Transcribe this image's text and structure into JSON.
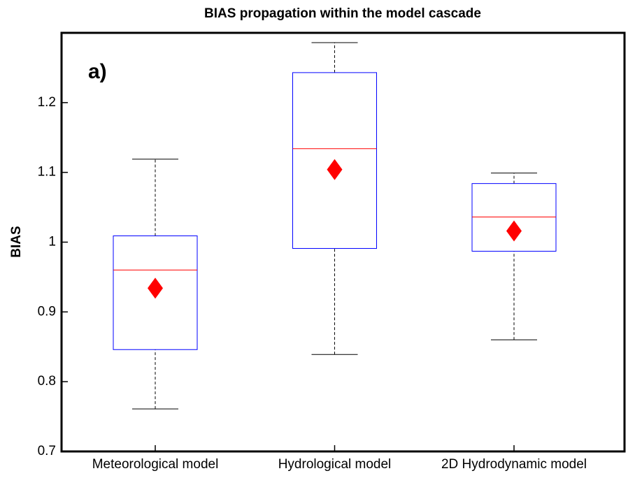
{
  "chart_data": {
    "type": "box",
    "title": "BIAS propagation within the model cascade",
    "ylabel": "BIAS",
    "panel_label": "a)",
    "categories": [
      "Meteorological model",
      "Hydrological model",
      "2D Hydrodynamic model"
    ],
    "whisker_low": [
      0.761,
      0.839,
      0.86
    ],
    "q1": [
      0.846,
      0.991,
      0.987
    ],
    "median": [
      0.96,
      1.134,
      1.036
    ],
    "q3": [
      1.009,
      1.243,
      1.084
    ],
    "whisker_high": [
      1.119,
      1.286,
      1.099
    ],
    "mean": [
      0.934,
      1.104,
      1.016
    ],
    "box_color": "#0000ff",
    "median_color": "#ff0000",
    "mean_color": "#ff0000",
    "whisker_color": "#000000",
    "ylim": [
      0.7,
      1.3
    ],
    "yticks": [
      0.7,
      0.8,
      0.9,
      1,
      1.1,
      1.2
    ]
  }
}
